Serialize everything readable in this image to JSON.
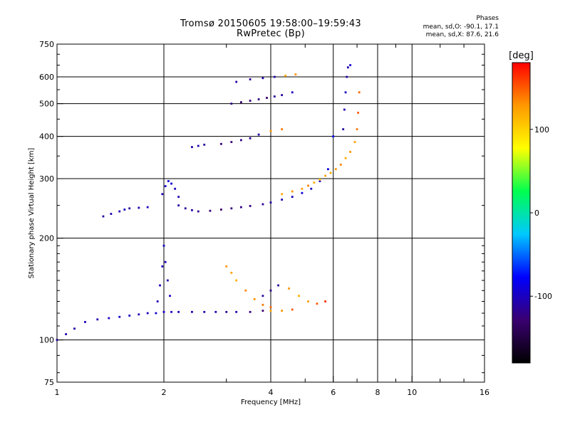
{
  "header": {
    "title_line1": "Tromsø 20150605 19:58:00–19:59:43",
    "title_line2": "RwPretec (Bp)"
  },
  "phase_info": {
    "heading": "Phases",
    "line_o": "mean, sd,O: -90.1, 17.1",
    "line_x": "mean, sd,X: 87.6, 21.6"
  },
  "colorbar": {
    "unit_label": "[deg]",
    "ticks": [
      {
        "value": 100,
        "label": "100"
      },
      {
        "value": 0,
        "label": "0"
      },
      {
        "value": -100,
        "label": "-100"
      }
    ],
    "range": [
      -180,
      180
    ],
    "colors": [
      "#000000",
      "#3a0070",
      "#0000ff",
      "#00c8ff",
      "#00ff50",
      "#ffff00",
      "#ff9900",
      "#ff0000"
    ]
  },
  "chart_data": {
    "type": "scatter",
    "title": "Tromsø 20150605 19:58:00–19:59:43",
    "subtitle": "RwPretec (Bp)",
    "xlabel": "Frequency [MHz]",
    "ylabel": "Stationary phase Virtual Height [km]",
    "x_scale": "log",
    "y_scale": "log",
    "xlim": [
      1,
      16
    ],
    "ylim": [
      75,
      750
    ],
    "grid": true,
    "x_ticks": [
      {
        "value": 1,
        "label": "1"
      },
      {
        "value": 2,
        "label": "2"
      },
      {
        "value": 4,
        "label": "4"
      },
      {
        "value": 6,
        "label": "6"
      },
      {
        "value": 8,
        "label": "8"
      },
      {
        "value": 10,
        "label": "10"
      },
      {
        "value": 16,
        "label": "16"
      }
    ],
    "x_grid": [
      2,
      4,
      6,
      8,
      10
    ],
    "y_ticks": [
      {
        "value": 75,
        "label": "75"
      },
      {
        "value": 100,
        "label": "100"
      },
      {
        "value": 200,
        "label": "200"
      },
      {
        "value": 300,
        "label": "300"
      },
      {
        "value": 400,
        "label": "400"
      },
      {
        "value": 500,
        "label": "500"
      },
      {
        "value": 600,
        "label": "600"
      },
      {
        "value": 750,
        "label": "750"
      }
    ],
    "y_grid": [
      100,
      200,
      300,
      400,
      500,
      600
    ],
    "color_dimension": "phase_deg",
    "traces": [
      {
        "x": [
          1.0,
          1.06,
          1.12,
          1.2,
          1.3,
          1.4,
          1.5,
          1.6,
          1.7,
          1.8,
          1.9,
          2.0,
          2.1,
          2.2,
          2.4,
          2.6,
          2.8,
          3.0,
          3.2,
          3.5,
          3.8,
          4.0,
          4.3,
          4.6
        ],
        "y": [
          100,
          104,
          108,
          113,
          115,
          116,
          117,
          118,
          119,
          120,
          120,
          121,
          121,
          121,
          121,
          121,
          121,
          121,
          121,
          121,
          122,
          122,
          122,
          123
        ],
        "phase": [
          -110,
          -105,
          -108,
          -100,
          -105,
          -100,
          -95,
          -100,
          -105,
          -100,
          -95,
          -95,
          -100,
          -105,
          -100,
          -110,
          -105,
          -115,
          -110,
          -120,
          -130,
          120,
          130,
          150
        ]
      },
      {
        "x": [
          1.92,
          1.95,
          1.98,
          2.0,
          2.02,
          2.05,
          2.08
        ],
        "y": [
          130,
          145,
          165,
          190,
          170,
          150,
          135
        ],
        "phase": [
          -105,
          -100,
          -100,
          -95,
          -100,
          -105,
          -100
        ]
      },
      {
        "x": [
          1.35,
          1.42,
          1.5,
          1.55,
          1.6,
          1.7,
          1.8
        ],
        "y": [
          232,
          236,
          240,
          243,
          245,
          246,
          247
        ],
        "phase": [
          -110,
          -105,
          -105,
          -100,
          -110,
          -105,
          -100
        ]
      },
      {
        "x": [
          1.98,
          2.02,
          2.06,
          2.1,
          2.15,
          2.2
        ],
        "y": [
          270,
          285,
          295,
          290,
          280,
          265
        ],
        "phase": [
          -100,
          -95,
          -90,
          -95,
          -100,
          -105
        ]
      },
      {
        "x": [
          2.2,
          2.3,
          2.4,
          2.5,
          2.7,
          2.9,
          3.1,
          3.3,
          3.5,
          3.8,
          4.0,
          4.3,
          4.6,
          4.9,
          5.2,
          5.5,
          5.8,
          6.0
        ],
        "y": [
          250,
          245,
          242,
          240,
          241,
          243,
          245,
          247,
          249,
          252,
          255,
          260,
          265,
          272,
          280,
          295,
          320,
          400
        ],
        "phase": [
          -110,
          -115,
          -110,
          -120,
          -125,
          -130,
          -125,
          -120,
          -125,
          -115,
          -110,
          -105,
          -100,
          -90,
          -100,
          -95,
          -90,
          -80
        ]
      },
      {
        "x": [
          4.3,
          4.6,
          4.9,
          5.1,
          5.3,
          5.5,
          5.7,
          5.9,
          6.1,
          6.3,
          6.5,
          6.7,
          6.9,
          7.0,
          7.05,
          7.1
        ],
        "y": [
          270,
          275,
          280,
          286,
          292,
          298,
          306,
          312,
          320,
          330,
          345,
          360,
          385,
          420,
          470,
          540
        ],
        "phase": [
          120,
          130,
          125,
          135,
          120,
          110,
          125,
          120,
          130,
          135,
          120,
          130,
          125,
          140,
          150,
          145
        ]
      },
      {
        "x": [
          6.4,
          6.45,
          6.5,
          6.55,
          6.6,
          6.7
        ],
        "y": [
          420,
          480,
          540,
          600,
          640,
          650
        ],
        "phase": [
          -110,
          -105,
          -100,
          -110,
          -100,
          -95
        ]
      },
      {
        "x": [
          2.4,
          2.5,
          2.6,
          2.9,
          3.1,
          3.3,
          3.5,
          3.7,
          4.0,
          4.3
        ],
        "y": [
          372,
          375,
          378,
          380,
          385,
          390,
          395,
          405,
          415,
          420
        ],
        "phase": [
          -110,
          -105,
          -110,
          -125,
          -130,
          -120,
          -115,
          -110,
          130,
          140
        ]
      },
      {
        "x": [
          3.1,
          3.3,
          3.5,
          3.7,
          3.9,
          4.1,
          4.3,
          4.6
        ],
        "y": [
          500,
          505,
          510,
          515,
          520,
          525,
          530,
          540
        ],
        "phase": [
          -120,
          -130,
          -125,
          -120,
          -130,
          -115,
          -110,
          -100
        ]
      },
      {
        "x": [
          3.2,
          3.5,
          3.8,
          4.1,
          4.4,
          4.7
        ],
        "y": [
          580,
          590,
          595,
          600,
          605,
          610
        ],
        "phase": [
          -110,
          -115,
          -105,
          -110,
          120,
          130
        ]
      },
      {
        "x": [
          3.0,
          3.1,
          3.2,
          3.4,
          3.6,
          3.8,
          4.0
        ],
        "y": [
          165,
          158,
          150,
          140,
          132,
          127,
          125
        ],
        "phase": [
          130,
          125,
          120,
          135,
          130,
          140,
          145
        ]
      },
      {
        "x": [
          3.8,
          4.0,
          4.2,
          4.5,
          4.8,
          5.1,
          5.4,
          5.7
        ],
        "y": [
          135,
          140,
          145,
          142,
          135,
          130,
          128,
          130
        ],
        "phase": [
          -110,
          -120,
          -115,
          130,
          120,
          125,
          150,
          165
        ]
      }
    ]
  }
}
